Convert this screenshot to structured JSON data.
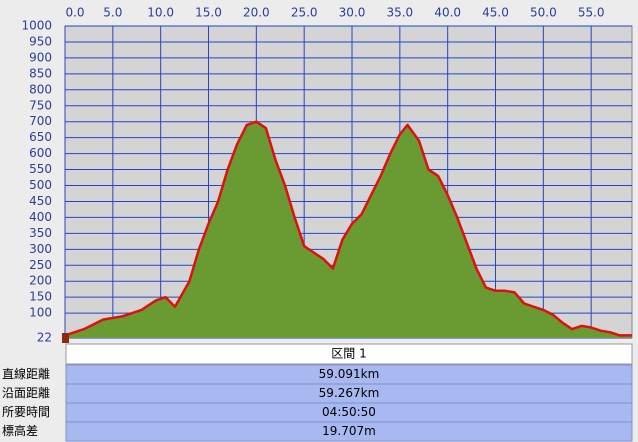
{
  "chart_data": {
    "type": "area",
    "x": [
      0,
      2,
      4,
      6,
      8,
      9.5,
      10.5,
      11.5,
      13,
      14,
      15,
      16,
      17,
      18,
      19,
      20,
      21,
      22,
      23,
      24,
      25,
      26,
      27,
      28,
      29,
      30,
      31,
      32,
      33,
      34,
      35,
      35.8,
      37,
      38,
      39,
      40,
      41,
      42,
      43,
      44,
      45,
      46,
      47,
      48,
      50,
      51,
      52,
      53,
      54,
      55,
      56,
      57,
      58,
      59.267
    ],
    "values": [
      30,
      50,
      80,
      90,
      110,
      140,
      150,
      120,
      200,
      300,
      380,
      450,
      550,
      630,
      690,
      700,
      680,
      580,
      500,
      400,
      310,
      290,
      270,
      240,
      330,
      380,
      410,
      470,
      530,
      600,
      660,
      690,
      640,
      550,
      530,
      470,
      400,
      320,
      240,
      180,
      170,
      170,
      165,
      130,
      110,
      95,
      70,
      50,
      60,
      55,
      45,
      40,
      30,
      30
    ],
    "fill_color": "#6a9a32",
    "line_color": "#e01010",
    "xlim": [
      0,
      59.267
    ],
    "xticks": [
      {
        "value": 0,
        "label": "0.0"
      },
      {
        "value": 5,
        "label": "5.0"
      },
      {
        "value": 10,
        "label": "10.0"
      },
      {
        "value": 15,
        "label": "15.0"
      },
      {
        "value": 20,
        "label": "20.0"
      },
      {
        "value": 25,
        "label": "25.0"
      },
      {
        "value": 30,
        "label": "30.0"
      },
      {
        "value": 35,
        "label": "35.0"
      },
      {
        "value": 40,
        "label": "40.0"
      },
      {
        "value": 45,
        "label": "45.0"
      },
      {
        "value": 50,
        "label": "50.0"
      },
      {
        "value": 55,
        "label": "55.0"
      }
    ],
    "ylim": [
      22,
      1000
    ],
    "yticks": [
      1000,
      950,
      900,
      850,
      800,
      750,
      700,
      650,
      600,
      550,
      500,
      450,
      400,
      350,
      300,
      250,
      200,
      150,
      100,
      22
    ],
    "grid": true
  },
  "table": {
    "header": "区間 1",
    "rows": [
      [
        "直線距離",
        "59.091km"
      ],
      [
        "沿面距離",
        "59.267km"
      ],
      [
        "所要時間",
        "04:50:50"
      ],
      [
        "標高差",
        "19.707m"
      ]
    ]
  }
}
